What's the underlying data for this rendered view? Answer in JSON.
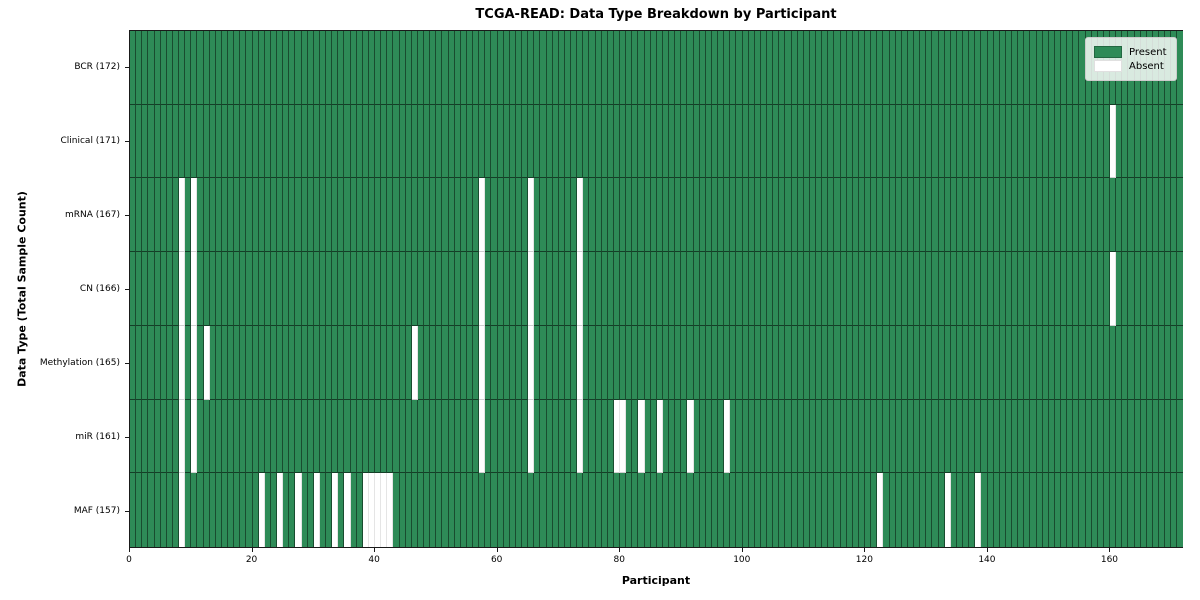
{
  "title": "TCGA-READ: Data Type Breakdown by Participant",
  "xlabel": "Participant",
  "ylabel": "Data Type (Total Sample Count)",
  "legend": {
    "present_label": "Present",
    "absent_label": "Absent"
  },
  "colors": {
    "present": "#2E8B57",
    "absent": "#FFFFFF"
  },
  "chart_data": {
    "type": "heatmap",
    "title": "TCGA-READ: Data Type Breakdown by Participant",
    "xlabel": "Participant",
    "ylabel": "Data Type (Total Sample Count)",
    "n_participants": 172,
    "x_ticks": [
      0,
      20,
      40,
      60,
      80,
      100,
      120,
      140,
      160
    ],
    "legend_entries": [
      "Present",
      "Absent"
    ],
    "legend_position": "upper right",
    "cell_values": "1 = present (green), 0 = absent (white)",
    "rows": [
      {
        "label": "BCR (172)",
        "data_type": "BCR",
        "total_sample_count": 172,
        "absent_participants": []
      },
      {
        "label": "Clinical (171)",
        "data_type": "Clinical",
        "total_sample_count": 171,
        "absent_participants": [
          160
        ]
      },
      {
        "label": "mRNA (167)",
        "data_type": "mRNA",
        "total_sample_count": 167,
        "absent_participants": [
          8,
          10,
          57,
          65,
          73
        ]
      },
      {
        "label": "CN (166)",
        "data_type": "CN",
        "total_sample_count": 166,
        "absent_participants": [
          8,
          10,
          57,
          65,
          73,
          160
        ]
      },
      {
        "label": "Methylation (165)",
        "data_type": "Methylation",
        "total_sample_count": 165,
        "absent_participants": [
          8,
          10,
          12,
          46,
          57,
          65,
          73
        ]
      },
      {
        "label": "miR (161)",
        "data_type": "miR",
        "total_sample_count": 161,
        "absent_participants": [
          8,
          10,
          57,
          65,
          73,
          79,
          80,
          83,
          86,
          91,
          97
        ]
      },
      {
        "label": "MAF (157)",
        "data_type": "MAF",
        "total_sample_count": 157,
        "absent_participants": [
          8,
          21,
          24,
          27,
          30,
          33,
          35,
          38,
          39,
          40,
          41,
          42,
          122,
          133,
          138
        ]
      }
    ]
  }
}
